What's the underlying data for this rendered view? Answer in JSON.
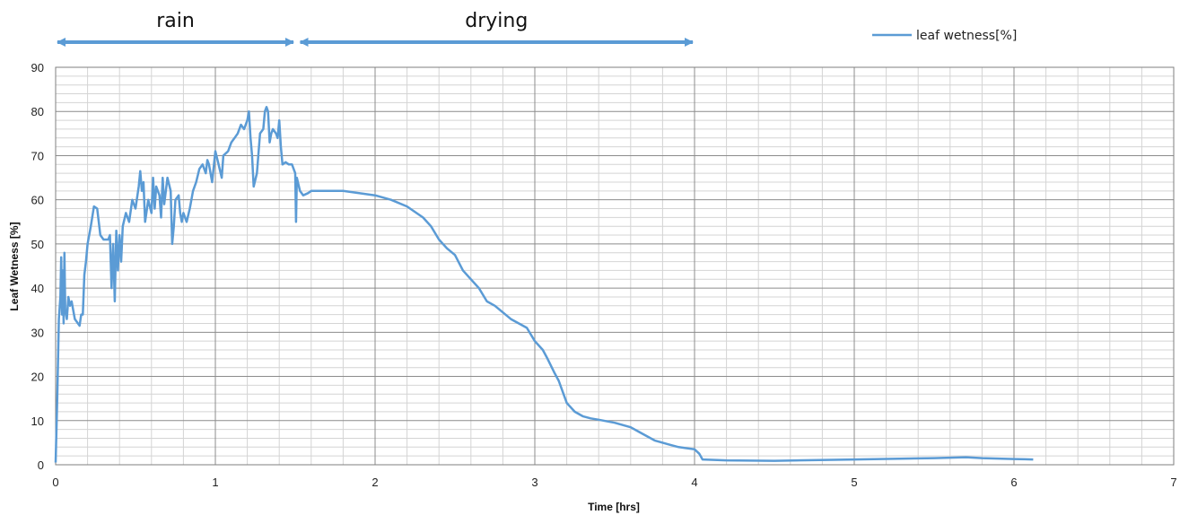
{
  "chart_data": {
    "type": "line",
    "xlabel": "Time [hrs]",
    "ylabel": "Leaf Wetness [%]",
    "xlim": [
      0,
      7
    ],
    "ylim": [
      0,
      90
    ],
    "x_ticks": [
      "0",
      "1",
      "2",
      "3",
      "4",
      "5",
      "6",
      "7"
    ],
    "y_ticks": [
      "0",
      "10",
      "20",
      "30",
      "40",
      "50",
      "60",
      "70",
      "80",
      "90"
    ],
    "x_minor_step": 0.2,
    "y_minor_step": 2,
    "grid": true,
    "legend_position": "top-right",
    "series": [
      {
        "name": "leaf wetness[%]",
        "color": "#5b9bd5",
        "points": [
          [
            0.0,
            0.5
          ],
          [
            0.01,
            15
          ],
          [
            0.02,
            33
          ],
          [
            0.03,
            38
          ],
          [
            0.035,
            47
          ],
          [
            0.04,
            34
          ],
          [
            0.045,
            44
          ],
          [
            0.05,
            32
          ],
          [
            0.055,
            48
          ],
          [
            0.06,
            35
          ],
          [
            0.07,
            33
          ],
          [
            0.08,
            38
          ],
          [
            0.09,
            36
          ],
          [
            0.1,
            37
          ],
          [
            0.12,
            33
          ],
          [
            0.14,
            32
          ],
          [
            0.15,
            31.5
          ],
          [
            0.16,
            34
          ],
          [
            0.17,
            34
          ],
          [
            0.18,
            43
          ],
          [
            0.19,
            46
          ],
          [
            0.2,
            50
          ],
          [
            0.22,
            54
          ],
          [
            0.24,
            58.5
          ],
          [
            0.26,
            58
          ],
          [
            0.28,
            52
          ],
          [
            0.3,
            51
          ],
          [
            0.33,
            51
          ],
          [
            0.34,
            52
          ],
          [
            0.35,
            40
          ],
          [
            0.36,
            50
          ],
          [
            0.37,
            37
          ],
          [
            0.38,
            53
          ],
          [
            0.39,
            44
          ],
          [
            0.4,
            52
          ],
          [
            0.41,
            46
          ],
          [
            0.42,
            54
          ],
          [
            0.44,
            57
          ],
          [
            0.46,
            55
          ],
          [
            0.48,
            60
          ],
          [
            0.5,
            58
          ],
          [
            0.52,
            63
          ],
          [
            0.53,
            66.5
          ],
          [
            0.54,
            62
          ],
          [
            0.55,
            64
          ],
          [
            0.56,
            55
          ],
          [
            0.58,
            60
          ],
          [
            0.6,
            57
          ],
          [
            0.61,
            65
          ],
          [
            0.62,
            58
          ],
          [
            0.63,
            63
          ],
          [
            0.65,
            61
          ],
          [
            0.66,
            56
          ],
          [
            0.67,
            65
          ],
          [
            0.68,
            59
          ],
          [
            0.7,
            65
          ],
          [
            0.72,
            62
          ],
          [
            0.73,
            50
          ],
          [
            0.74,
            54
          ],
          [
            0.75,
            60
          ],
          [
            0.77,
            61
          ],
          [
            0.78,
            57
          ],
          [
            0.79,
            55
          ],
          [
            0.8,
            57
          ],
          [
            0.82,
            55
          ],
          [
            0.84,
            58
          ],
          [
            0.86,
            62
          ],
          [
            0.88,
            64
          ],
          [
            0.9,
            67
          ],
          [
            0.92,
            68
          ],
          [
            0.94,
            66
          ],
          [
            0.95,
            69
          ],
          [
            0.96,
            68
          ],
          [
            0.98,
            64
          ],
          [
            1.0,
            71
          ],
          [
            1.02,
            68
          ],
          [
            1.04,
            65
          ],
          [
            1.05,
            70
          ],
          [
            1.08,
            71
          ],
          [
            1.1,
            73
          ],
          [
            1.12,
            74
          ],
          [
            1.14,
            75
          ],
          [
            1.16,
            77
          ],
          [
            1.18,
            76
          ],
          [
            1.2,
            78
          ],
          [
            1.21,
            80
          ],
          [
            1.22,
            74
          ],
          [
            1.23,
            70
          ],
          [
            1.24,
            63
          ],
          [
            1.26,
            66
          ],
          [
            1.28,
            75
          ],
          [
            1.3,
            76
          ],
          [
            1.31,
            80
          ],
          [
            1.32,
            81
          ],
          [
            1.33,
            80
          ],
          [
            1.34,
            73
          ],
          [
            1.35,
            75
          ],
          [
            1.36,
            76
          ],
          [
            1.38,
            75
          ],
          [
            1.39,
            74
          ],
          [
            1.4,
            78
          ],
          [
            1.41,
            72
          ],
          [
            1.42,
            68
          ],
          [
            1.44,
            68.5
          ],
          [
            1.46,
            68
          ],
          [
            1.48,
            68
          ],
          [
            1.49,
            67
          ],
          [
            1.5,
            66
          ],
          [
            1.505,
            55
          ],
          [
            1.51,
            65
          ],
          [
            1.53,
            62
          ],
          [
            1.55,
            61
          ],
          [
            1.58,
            61.5
          ],
          [
            1.6,
            62
          ],
          [
            1.7,
            62
          ],
          [
            1.8,
            62
          ],
          [
            1.9,
            61.5
          ],
          [
            2.0,
            61
          ],
          [
            2.1,
            60
          ],
          [
            2.2,
            58.5
          ],
          [
            2.3,
            56
          ],
          [
            2.35,
            54
          ],
          [
            2.4,
            51
          ],
          [
            2.45,
            49
          ],
          [
            2.5,
            47.5
          ],
          [
            2.55,
            44
          ],
          [
            2.6,
            42
          ],
          [
            2.65,
            40
          ],
          [
            2.7,
            37
          ],
          [
            2.75,
            36
          ],
          [
            2.8,
            34.5
          ],
          [
            2.85,
            33
          ],
          [
            2.9,
            32
          ],
          [
            2.95,
            31
          ],
          [
            3.0,
            28
          ],
          [
            3.05,
            26
          ],
          [
            3.08,
            24
          ],
          [
            3.12,
            21
          ],
          [
            3.15,
            19
          ],
          [
            3.18,
            16
          ],
          [
            3.2,
            14
          ],
          [
            3.25,
            12
          ],
          [
            3.3,
            11
          ],
          [
            3.35,
            10.5
          ],
          [
            3.4,
            10.2
          ],
          [
            3.5,
            9.5
          ],
          [
            3.55,
            9
          ],
          [
            3.6,
            8.5
          ],
          [
            3.65,
            7.5
          ],
          [
            3.7,
            6.5
          ],
          [
            3.75,
            5.5
          ],
          [
            3.8,
            5
          ],
          [
            3.85,
            4.5
          ],
          [
            3.9,
            4
          ],
          [
            4.0,
            3.5
          ],
          [
            4.03,
            2.5
          ],
          [
            4.05,
            1.2
          ],
          [
            4.2,
            1.0
          ],
          [
            4.5,
            0.9
          ],
          [
            5.0,
            1.2
          ],
          [
            5.5,
            1.5
          ],
          [
            5.7,
            1.7
          ],
          [
            5.8,
            1.5
          ],
          [
            6.0,
            1.3
          ],
          [
            6.12,
            1.2
          ]
        ]
      }
    ],
    "annotations": [
      {
        "label": "rain",
        "from": 0,
        "to": 1.5
      },
      {
        "label": "drying",
        "from": 1.52,
        "to": 4.0
      }
    ]
  }
}
